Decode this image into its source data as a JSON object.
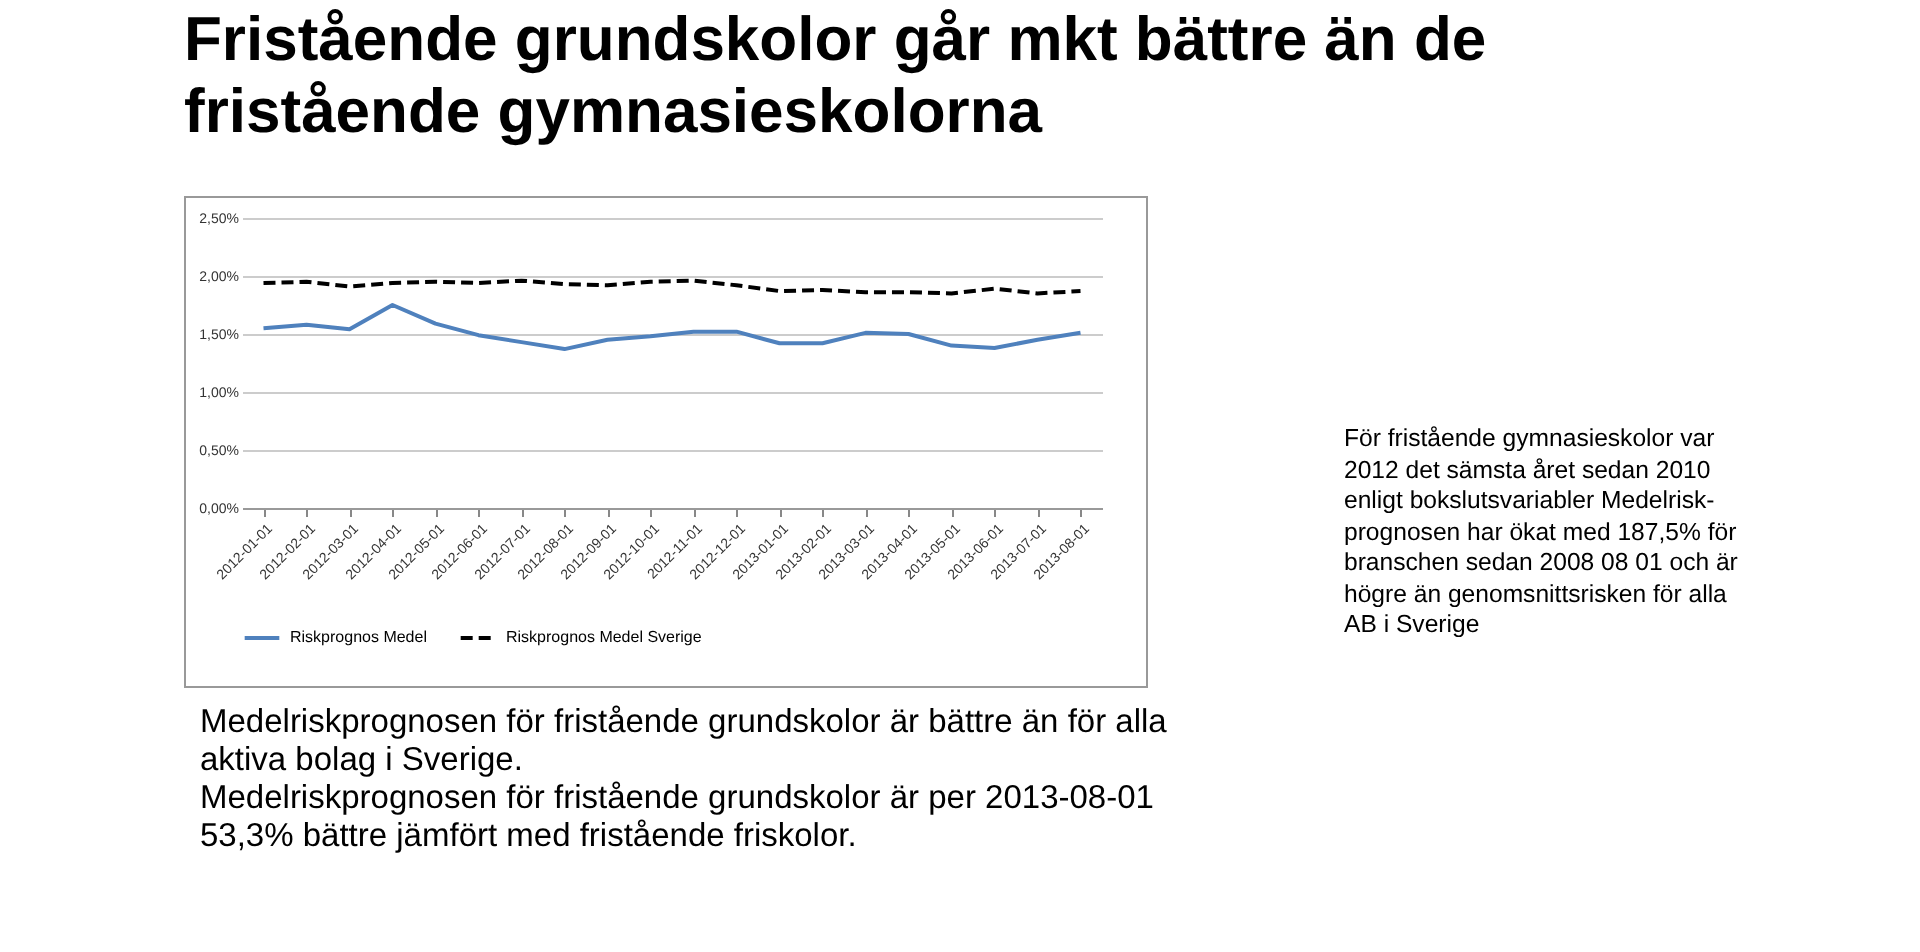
{
  "chart_data": {
    "type": "line",
    "title": "Fristående grundskolor går mkt bättre än de fristående gymnasieskolorna",
    "categories": [
      "2012-01-01",
      "2012-02-01",
      "2012-03-01",
      "2012-04-01",
      "2012-05-01",
      "2012-06-01",
      "2012-07-01",
      "2012-08-01",
      "2012-09-01",
      "2012-10-01",
      "2012-11-01",
      "2012-12-01",
      "2013-01-01",
      "2013-02-01",
      "2013-03-01",
      "2013-04-01",
      "2013-05-01",
      "2013-06-01",
      "2013-07-01",
      "2013-08-01"
    ],
    "series": [
      {
        "name": "Riskprognos  Medel",
        "color": "#4f81bd",
        "line_style": "solid",
        "values": [
          1.55,
          1.58,
          1.54,
          1.75,
          1.59,
          1.49,
          1.43,
          1.37,
          1.45,
          1.48,
          1.52,
          1.52,
          1.42,
          1.42,
          1.51,
          1.5,
          1.4,
          1.38,
          1.45,
          1.51
        ]
      },
      {
        "name": "Riskprognos Medel Sverige",
        "color": "#000000",
        "line_style": "dashed",
        "values": [
          1.94,
          1.95,
          1.91,
          1.94,
          1.95,
          1.94,
          1.96,
          1.93,
          1.92,
          1.95,
          1.96,
          1.92,
          1.87,
          1.88,
          1.86,
          1.86,
          1.85,
          1.89,
          1.85,
          1.87
        ]
      }
    ],
    "ylim": [
      0,
      2.5
    ],
    "yticks": [
      {
        "value": 0,
        "label": "0,00%"
      },
      {
        "value": 0.5,
        "label": "0,50%"
      },
      {
        "value": 1,
        "label": "1,00%"
      },
      {
        "value": 1.5,
        "label": "1,50%"
      },
      {
        "value": 2,
        "label": "2,00%"
      },
      {
        "value": 2.5,
        "label": "2,50%"
      }
    ],
    "grid": "y",
    "legend": "bottom",
    "annotations": [
      "För fristående gymnasieskolor var 2012 det sämsta året sedan 2010 enligt bokslutsvariabler Medelrisk-prognosen har ökat med 187,5% för branschen sedan 2008 08 01 och är högre än genomsnittsrisken för alla AB i Sverige",
      "Medelriskprognosen för fristående grundskolor är bättre än för alla aktiva bolag i Sverige.",
      "Medelriskprognosen för fristående grundskolor är per 2013-08-01 53,3% bättre jämfört med fristående friskolor."
    ]
  }
}
